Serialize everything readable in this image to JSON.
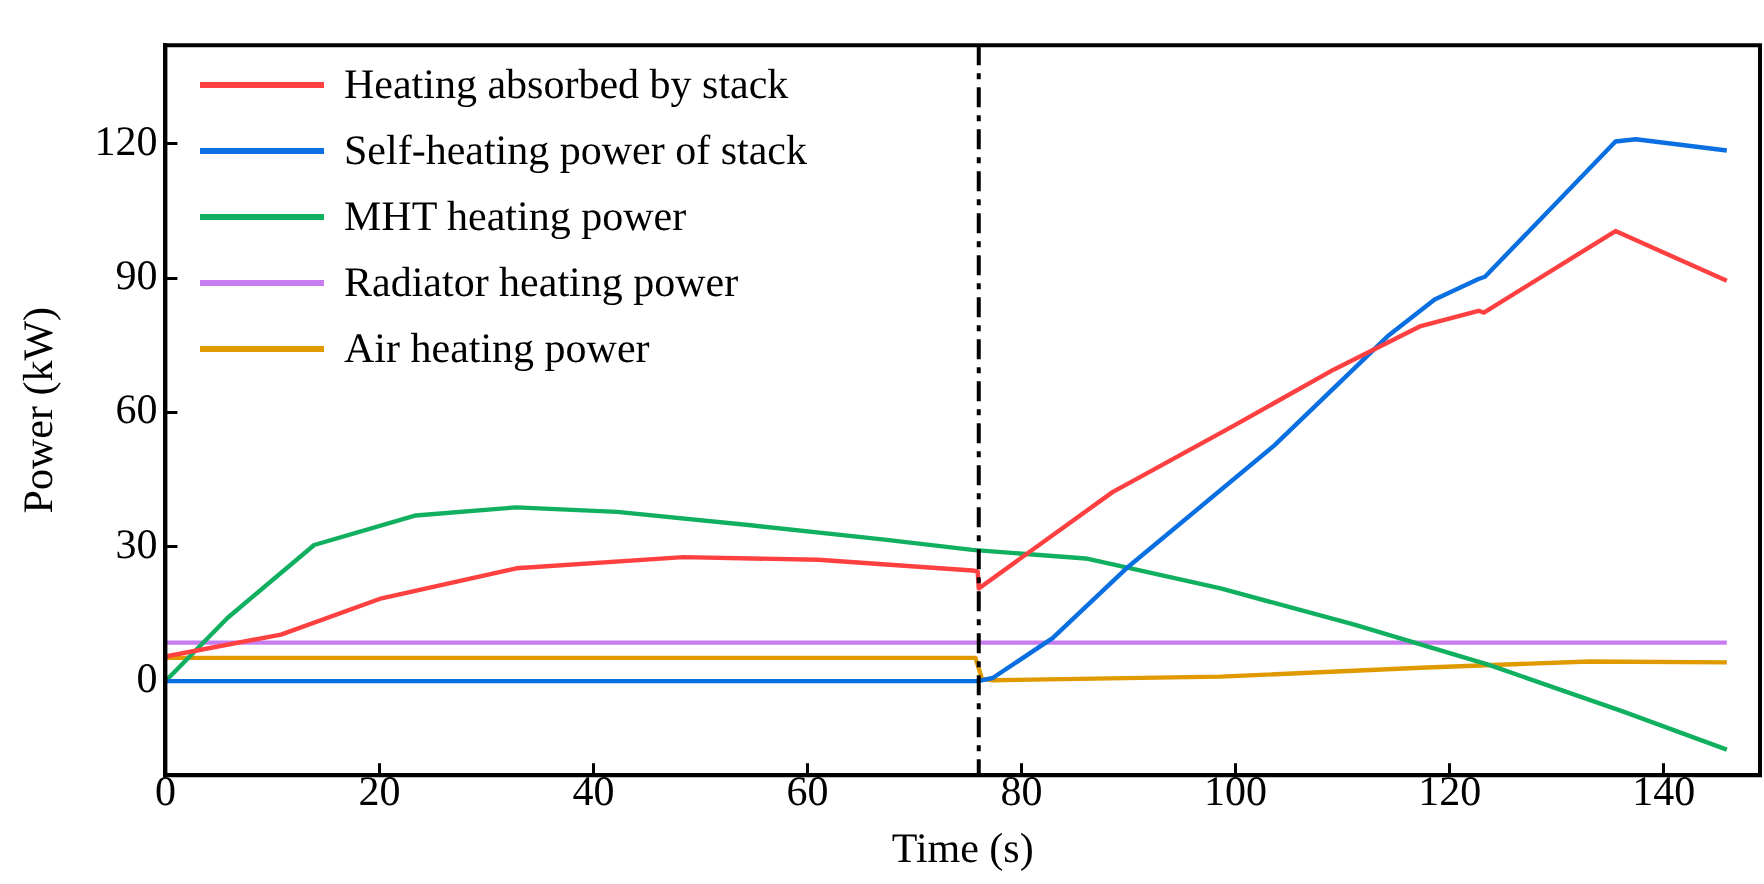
{
  "chart_data": {
    "type": "line",
    "xlabel": "Time (s)",
    "ylabel": "Power (kW)",
    "xlim": [
      0,
      149
    ],
    "xticks": [
      0,
      20,
      40,
      60,
      80,
      100,
      120,
      140
    ],
    "ylim": [
      -21,
      142
    ],
    "yticks": [
      0,
      30,
      60,
      90,
      120
    ],
    "grid": false,
    "legend": "top left",
    "marker": "none",
    "line_style": "solid",
    "ref_lines": [
      {
        "axis": "x",
        "value": 76,
        "color": "#000000",
        "line_style": "dashed"
      }
    ],
    "series": [
      {
        "name": "Heating absorbed by stack",
        "color": "#ff4040",
        "x": [
          0,
          10.8,
          20.2,
          32.8,
          48.4,
          61,
          75.4,
          75.9,
          76,
          88.5,
          99.8,
          109.2,
          117.3,
          122.7,
          123.2,
          135.5,
          145.9
        ],
        "values": [
          5.5,
          10.4,
          18.5,
          25.2,
          27.7,
          27.1,
          24.7,
          24.5,
          20.7,
          42.2,
          57,
          69.6,
          79.3,
          82.7,
          82.3,
          100.5,
          89.4
        ]
      },
      {
        "name": "Self-heating power of stack",
        "color": "#0a6fe0",
        "x": [
          0,
          75.9,
          77.3,
          82.9,
          89.8,
          103.6,
          114.2,
          118.6,
          122.7,
          123.3,
          135.5,
          137.4,
          145.9
        ],
        "values": [
          0,
          0,
          0.7,
          9.6,
          25.2,
          52.6,
          77,
          85.2,
          89.8,
          90.3,
          120.5,
          121,
          118.5
        ]
      },
      {
        "name": "MHT heating power",
        "color": "#10b060",
        "x": [
          0,
          5.8,
          13.9,
          23.4,
          32.8,
          42.2,
          54.7,
          67.2,
          75.4,
          86,
          98.6,
          111.1,
          123.6,
          136.1,
          145.9
        ],
        "values": [
          0,
          14.1,
          30.4,
          37,
          38.8,
          37.8,
          34.8,
          31.6,
          29.3,
          27.4,
          20.7,
          12.6,
          3.7,
          -6.7,
          -15.3
        ]
      },
      {
        "name": "Radiator heating power",
        "color": "#c77cf0",
        "x": [
          0,
          145.9
        ],
        "values": [
          8.6,
          8.6
        ]
      },
      {
        "name": "Air heating power",
        "color": "#e09a00",
        "x": [
          0,
          75.7,
          76.3,
          77.3,
          98.6,
          117.3,
          133,
          145.9
        ],
        "values": [
          5.2,
          5.2,
          0.5,
          0.2,
          1,
          3,
          4.4,
          4.2
        ]
      }
    ]
  }
}
